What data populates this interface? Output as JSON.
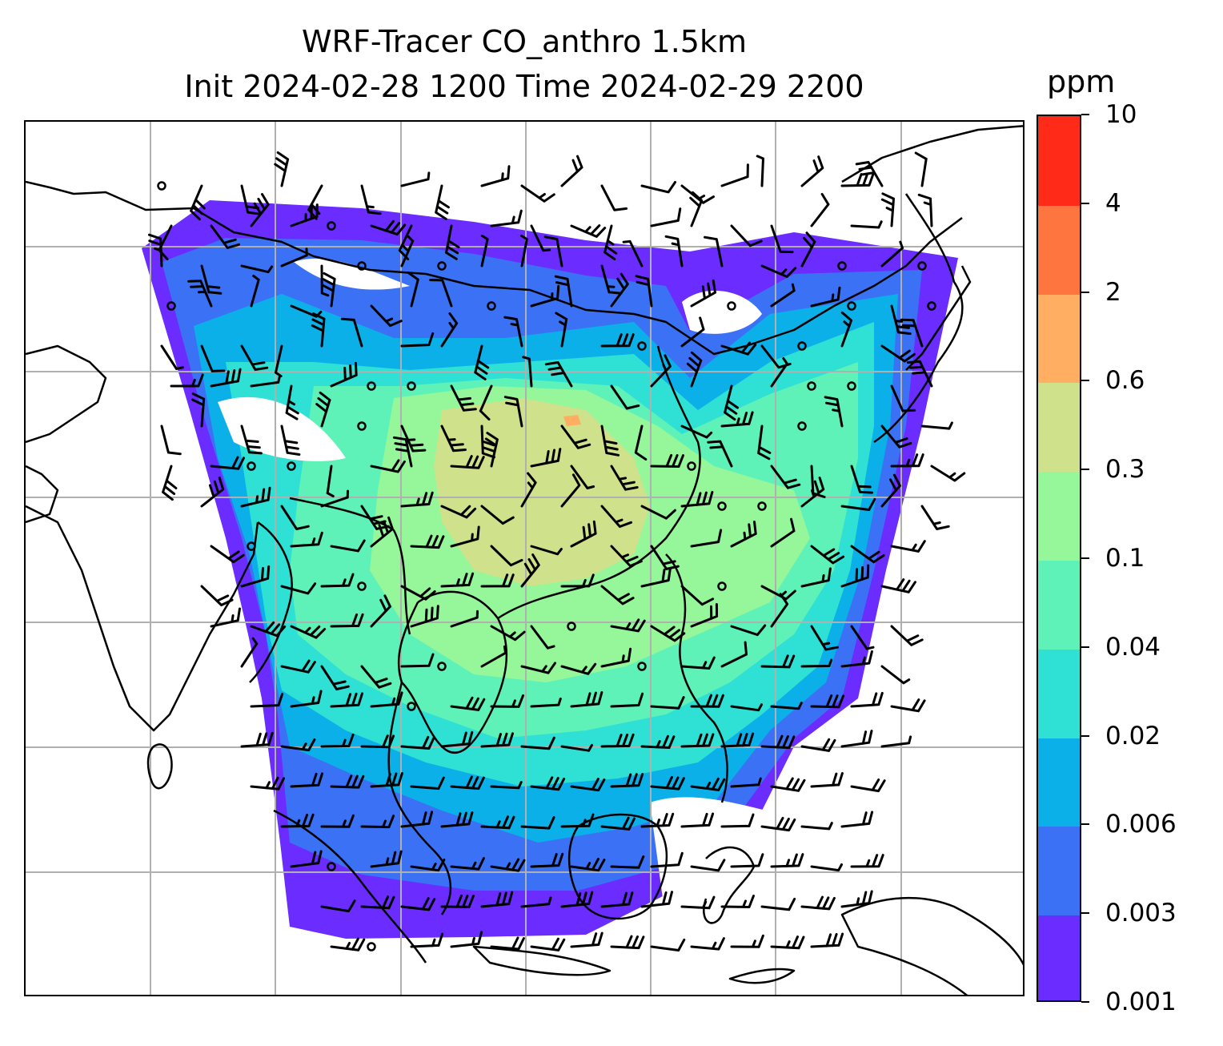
{
  "title": {
    "line1": "WRF-Tracer CO_anthro 1.5km",
    "line2": "Init 2024-02-28 1200 Time 2024-02-29 2200"
  },
  "colorbar": {
    "unit": "ppm",
    "levels": [
      {
        "label": "0.001",
        "color": "#6a2cff"
      },
      {
        "label": "0.003",
        "color": "#3b72f5"
      },
      {
        "label": "0.006",
        "color": "#0bb0e9"
      },
      {
        "label": "0.02",
        "color": "#2fe0d4"
      },
      {
        "label": "0.04",
        "color": "#5ef2b8"
      },
      {
        "label": "0.1",
        "color": "#96f79a"
      },
      {
        "label": "0.3",
        "color": "#cfe18a"
      },
      {
        "label": "0.6",
        "color": "#ffae62"
      },
      {
        "label": "2",
        "color": "#ff7540"
      },
      {
        "label": "4",
        "color": "#ff2a18"
      },
      {
        "label": "10",
        "color": null
      }
    ]
  },
  "map": {
    "gridlines": "on",
    "gridline_color": "#b0b0b0",
    "coastline_color": "#000000",
    "field": "CO_anthro",
    "overlay": "wind-barbs"
  }
}
